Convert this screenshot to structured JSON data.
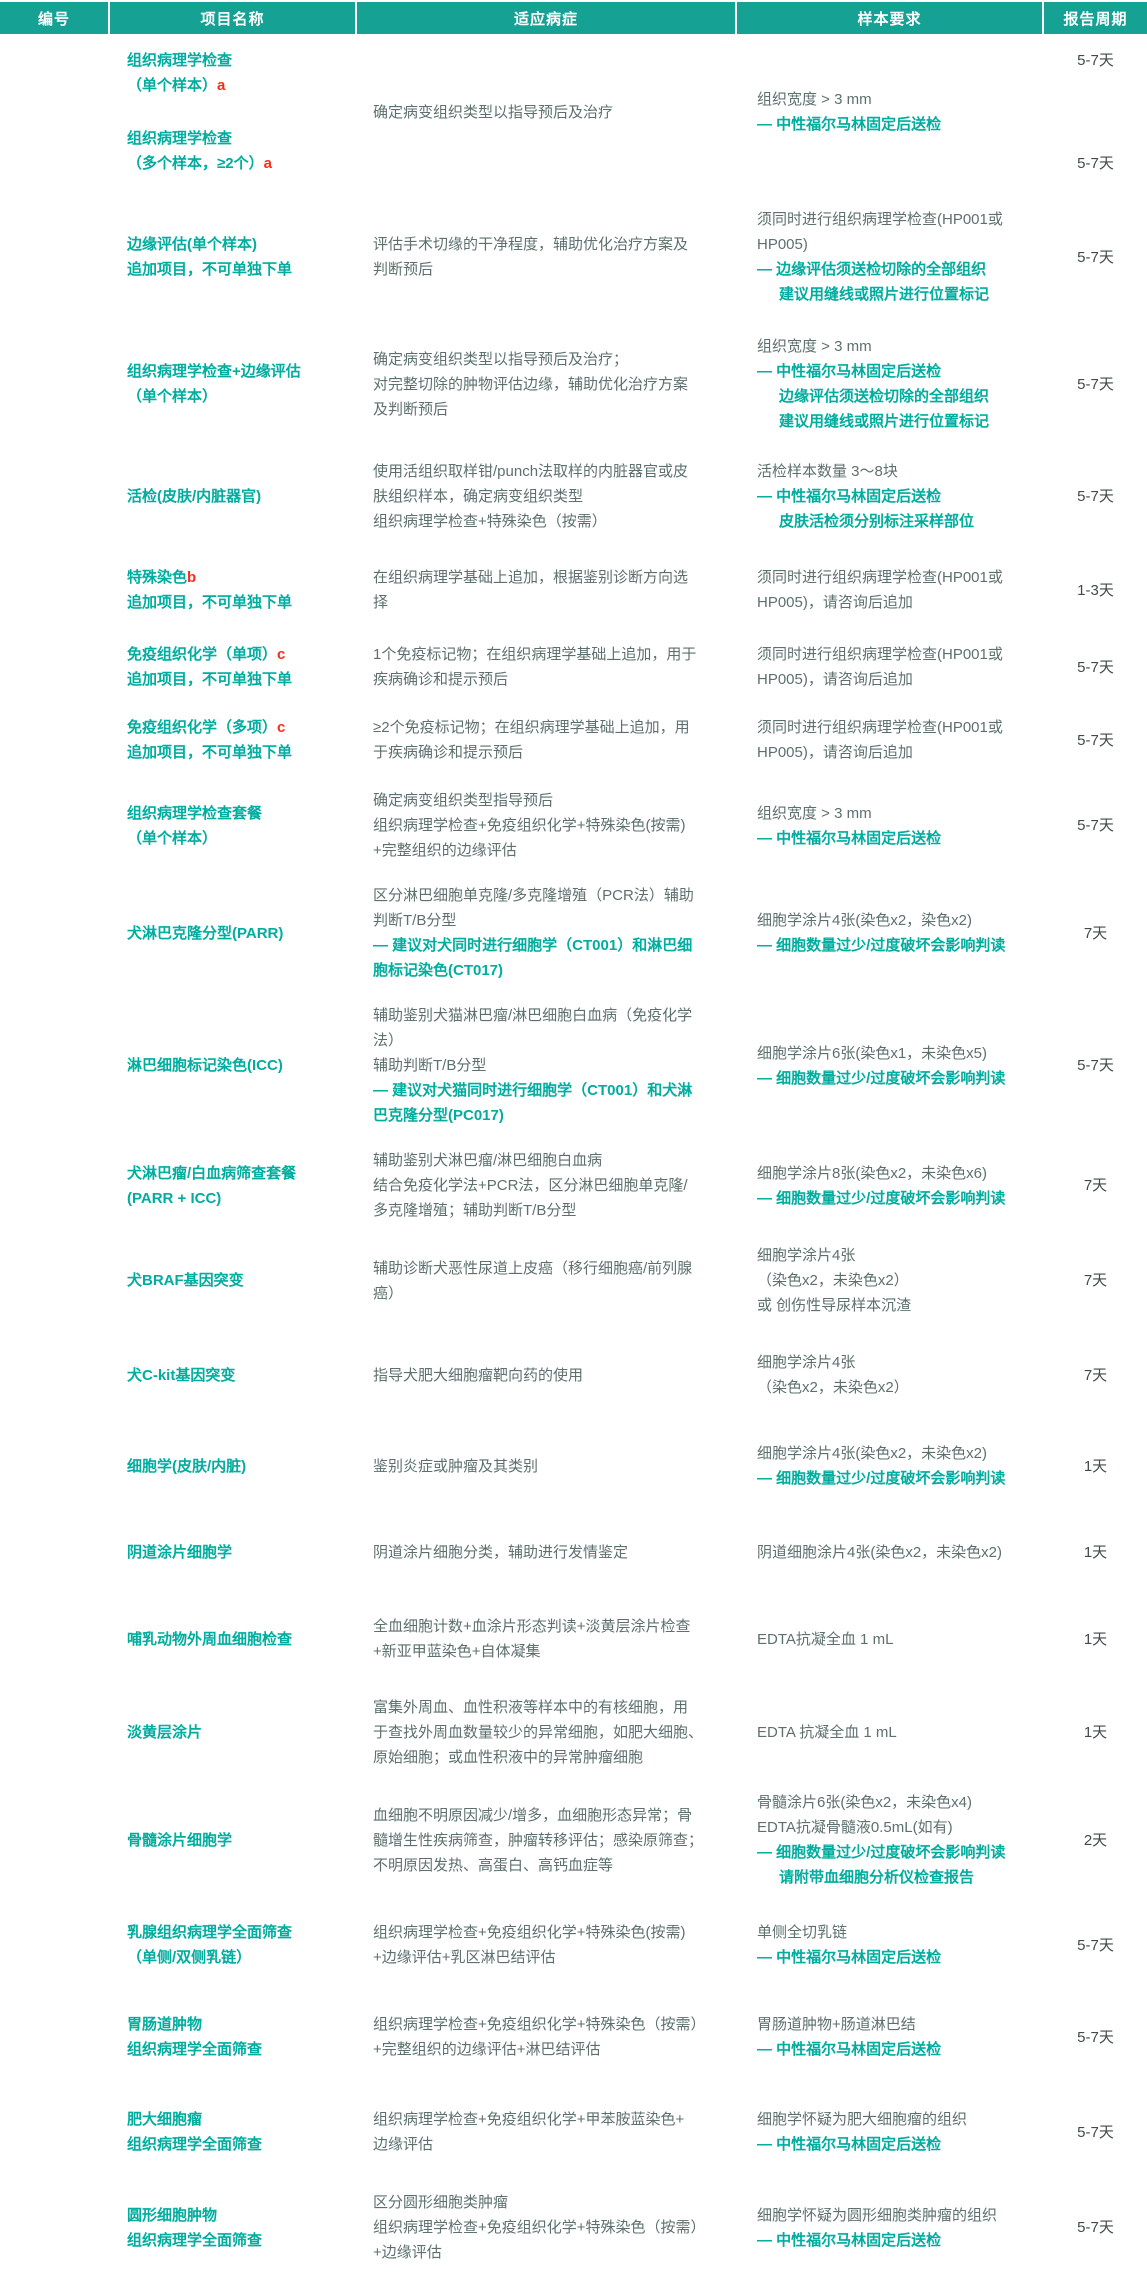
{
  "header": {
    "columns": [
      "编号",
      "项目名称",
      "适应病症",
      "样本要求",
      "报告周期"
    ]
  },
  "colors": {
    "header_bg": "#16a195",
    "accent_teal": "#00ad9f",
    "body_text": "#5d706d",
    "period_text": "#414b49",
    "marker_red": "#f92c1b"
  },
  "rows": [
    {
      "names": [
        {
          "lines": [
            {
              "t": "组织病理学检查"
            },
            {
              "t": "（单个样本）",
              "sup": "a"
            }
          ],
          "period": "5-7天"
        },
        {
          "lines": [
            {
              "t": "组织病理学检查"
            },
            {
              "t": "（多个样本，≥2个）",
              "sup": "a"
            }
          ],
          "period": "5-7天"
        }
      ],
      "indication": [
        {
          "t": "确定病变组织类型以指导预后及治疗"
        }
      ],
      "sample": [
        {
          "t": "组织宽度 > 3 mm"
        },
        {
          "t": "— 中性福尔马林固定后送检",
          "b": 1
        }
      ]
    },
    {
      "names": [
        {
          "lines": [
            {
              "t": "边缘评估(单个样本)"
            },
            {
              "t": "追加项目，不可单独下单"
            }
          ],
          "period": "5-7天"
        }
      ],
      "indication": [
        {
          "t": "评估手术切缘的干净程度，辅助优化治疗方案及"
        },
        {
          "t": "判断预后"
        }
      ],
      "sample": [
        {
          "t": "须同时进行组织病理学检查(HP001或"
        },
        {
          "t": "HP005)"
        },
        {
          "t": "— 边缘评估须送检切除的全部组织",
          "b": 1
        },
        {
          "t": "建议用缝线或照片进行位置标记",
          "b": 1,
          "i": 1
        }
      ]
    },
    {
      "names": [
        {
          "lines": [
            {
              "t": "组织病理学检查+边缘评估"
            },
            {
              "t": "（单个样本）"
            }
          ],
          "period": "5-7天"
        }
      ],
      "indication": [
        {
          "t": "确定病变组织类型以指导预后及治疗；"
        },
        {
          "t": "对完整切除的肿物评估边缘，辅助优化治疗方案"
        },
        {
          "t": "及判断预后"
        }
      ],
      "sample": [
        {
          "t": "组织宽度 > 3 mm"
        },
        {
          "t": "— 中性福尔马林固定后送检",
          "b": 1
        },
        {
          "t": "边缘评估须送检切除的全部组织",
          "b": 1,
          "i": 1
        },
        {
          "t": "建议用缝线或照片进行位置标记",
          "b": 1,
          "i": 1
        }
      ]
    },
    {
      "names": [
        {
          "lines": [
            {
              "t": "活检(皮肤/内脏器官)"
            }
          ],
          "period": "5-7天"
        }
      ],
      "indication": [
        {
          "t": "使用活组织取样钳/punch法取样的内脏器官或皮"
        },
        {
          "t": "肤组织样本，确定病变组织类型"
        },
        {
          "t": "组织病理学检查+特殊染色（按需）"
        }
      ],
      "sample": [
        {
          "t": "活检样本数量 3～8块"
        },
        {
          "t": "— 中性福尔马林固定后送检",
          "b": 1
        },
        {
          "t": "皮肤活检须分别标注采样部位",
          "b": 1,
          "i": 1
        }
      ]
    },
    {
      "names": [
        {
          "lines": [
            {
              "t": "特殊染色",
              "sup": "b"
            },
            {
              "t": "追加项目，不可单独下单"
            }
          ],
          "period": "1-3天"
        }
      ],
      "indication": [
        {
          "t": "在组织病理学基础上追加，根据鉴别诊断方向选"
        },
        {
          "t": "择"
        }
      ],
      "sample": [
        {
          "t": "须同时进行组织病理学检查(HP001或"
        },
        {
          "t": "HP005)，请咨询后追加"
        }
      ]
    },
    {
      "names": [
        {
          "lines": [
            {
              "t": "免疫组织化学（单项）",
              "sup": "c"
            },
            {
              "t": "追加项目，不可单独下单"
            }
          ],
          "period": "5-7天"
        }
      ],
      "indication": [
        {
          "t": "1个免疫标记物；在组织病理学基础上追加，用于"
        },
        {
          "t": "疾病确诊和提示预后"
        }
      ],
      "sample": [
        {
          "t": "须同时进行组织病理学检查(HP001或"
        },
        {
          "t": "HP005)，请咨询后追加"
        }
      ]
    },
    {
      "names": [
        {
          "lines": [
            {
              "t": "免疫组织化学（多项）",
              "sup": "c"
            },
            {
              "t": "追加项目，不可单独下单"
            }
          ],
          "period": "5-7天"
        }
      ],
      "indication": [
        {
          "t": "≥2个免疫标记物；在组织病理学基础上追加，用"
        },
        {
          "t": "于疾病确诊和提示预后"
        }
      ],
      "sample": [
        {
          "t": "须同时进行组织病理学检查(HP001或"
        },
        {
          "t": "HP005)，请咨询后追加"
        }
      ]
    },
    {
      "names": [
        {
          "lines": [
            {
              "t": "组织病理学检查套餐"
            },
            {
              "t": "（单个样本）"
            }
          ],
          "period": "5-7天"
        }
      ],
      "indication": [
        {
          "t": "确定病变组织类型指导预后"
        },
        {
          "t": "组织病理学检查+免疫组织化学+特殊染色(按需)"
        },
        {
          "t": "+完整组织的边缘评估"
        }
      ],
      "sample": [
        {
          "t": "组织宽度 > 3 mm"
        },
        {
          "t": "— 中性福尔马林固定后送检",
          "b": 1
        }
      ]
    },
    {
      "names": [
        {
          "lines": [
            {
              "t": "犬淋巴克隆分型(PARR)"
            }
          ],
          "period": "7天"
        }
      ],
      "indication": [
        {
          "t": "区分淋巴细胞单克隆/多克隆增殖（PCR法）辅助"
        },
        {
          "t": "判断T/B分型"
        },
        {
          "t": "— 建议对犬同时进行细胞学（CT001）和淋巴细",
          "b": 1
        },
        {
          "t": "胞标记染色(CT017)",
          "b": 1
        }
      ],
      "sample": [
        {
          "t": "细胞学涂片4张(染色x2，染色x2)"
        },
        {
          "t": "— 细胞数量过少/过度破坏会影响判读",
          "b": 1
        }
      ]
    },
    {
      "names": [
        {
          "lines": [
            {
              "t": "淋巴细胞标记染色(ICC)"
            }
          ],
          "period": "5-7天"
        }
      ],
      "indication": [
        {
          "t": "辅助鉴别犬猫淋巴瘤/淋巴细胞白血病（免疫化学"
        },
        {
          "t": "法）"
        },
        {
          "t": "辅助判断T/B分型"
        },
        {
          "t": "— 建议对犬猫同时进行细胞学（CT001）和犬淋",
          "b": 1
        },
        {
          "t": "巴克隆分型(PC017)",
          "b": 1
        }
      ],
      "sample": [
        {
          "t": "细胞学涂片6张(染色x1，未染色x5)"
        },
        {
          "t": "— 细胞数量过少/过度破坏会影响判读",
          "b": 1
        }
      ]
    },
    {
      "names": [
        {
          "lines": [
            {
              "t": "犬淋巴瘤/白血病筛查套餐"
            },
            {
              "t": "(PARR + ICC)"
            }
          ],
          "period": "7天"
        }
      ],
      "indication": [
        {
          "t": "辅助鉴别犬淋巴瘤/淋巴细胞白血病"
        },
        {
          "t": "结合免疫化学法+PCR法，区分淋巴细胞单克隆/"
        },
        {
          "t": "多克隆增殖；辅助判断T/B分型"
        }
      ],
      "sample": [
        {
          "t": "细胞学涂片8张(染色x2，未染色x6)"
        },
        {
          "t": "— 细胞数量过少/过度破坏会影响判读",
          "b": 1
        }
      ]
    },
    {
      "names": [
        {
          "lines": [
            {
              "t": "犬BRAF基因突变"
            }
          ],
          "period": "7天"
        }
      ],
      "indication": [
        {
          "t": "辅助诊断犬恶性尿道上皮癌（移行细胞癌/前列腺"
        },
        {
          "t": "癌）"
        }
      ],
      "sample": [
        {
          "t": "细胞学涂片4张"
        },
        {
          "t": "（染色x2，未染色x2）"
        },
        {
          "t": "或 创伤性导尿样本沉渣"
        }
      ]
    },
    {
      "names": [
        {
          "lines": [
            {
              "t": "犬C-kit基因突变"
            }
          ],
          "period": "7天"
        }
      ],
      "indication": [
        {
          "t": "指导犬肥大细胞瘤靶向药的使用"
        }
      ],
      "sample": [
        {
          "t": "细胞学涂片4张"
        },
        {
          "t": "（染色x2，未染色x2）"
        }
      ]
    },
    {
      "names": [
        {
          "lines": [
            {
              "t": "细胞学(皮肤/内脏)"
            }
          ],
          "period": "1天"
        }
      ],
      "indication": [
        {
          "t": "鉴别炎症或肿瘤及其类别"
        }
      ],
      "sample": [
        {
          "t": "细胞学涂片4张(染色x2，未染色x2)"
        },
        {
          "t": "— 细胞数量过少/过度破坏会影响判读",
          "b": 1
        }
      ]
    },
    {
      "names": [
        {
          "lines": [
            {
              "t": "阴道涂片细胞学"
            }
          ],
          "period": "1天"
        }
      ],
      "indication": [
        {
          "t": "阴道涂片细胞分类，辅助进行发情鉴定"
        }
      ],
      "sample": [
        {
          "t": "阴道细胞涂片4张(染色x2，未染色x2)"
        }
      ]
    },
    {
      "names": [
        {
          "lines": [
            {
              "t": "哺乳动物外周血细胞检查"
            }
          ],
          "period": "1天"
        }
      ],
      "indication": [
        {
          "t": "全血细胞计数+血涂片形态判读+淡黄层涂片检查"
        },
        {
          "t": "+新亚甲蓝染色+自体凝集"
        }
      ],
      "sample": [
        {
          "t": "EDTA抗凝全血 1 mL"
        }
      ]
    },
    {
      "names": [
        {
          "lines": [
            {
              "t": "淡黄层涂片"
            }
          ],
          "period": "1天"
        }
      ],
      "indication": [
        {
          "t": "富集外周血、血性积液等样本中的有核细胞，用"
        },
        {
          "t": "于查找外周血数量较少的异常细胞，如肥大细胞、"
        },
        {
          "t": "原始细胞；或血性积液中的异常肿瘤细胞"
        }
      ],
      "sample": [
        {
          "t": "EDTA 抗凝全血 1 mL"
        }
      ]
    },
    {
      "names": [
        {
          "lines": [
            {
              "t": "骨髓涂片细胞学"
            }
          ],
          "period": "2天"
        }
      ],
      "indication": [
        {
          "t": "血细胞不明原因减少/增多，血细胞形态异常；骨"
        },
        {
          "t": "髓增生性疾病筛查，肿瘤转移评估；感染原筛查；"
        },
        {
          "t": "不明原因发热、高蛋白、高钙血症等"
        }
      ],
      "sample": [
        {
          "t": "骨髓涂片6张(染色x2，未染色x4)"
        },
        {
          "t": "EDTA抗凝骨髓液0.5mL(如有)"
        },
        {
          "t": "— 细胞数量过少/过度破坏会影响判读",
          "b": 1
        },
        {
          "t": "请附带血细胞分析仪检查报告",
          "b": 1,
          "i": 1
        }
      ]
    },
    {
      "names": [
        {
          "lines": [
            {
              "t": "乳腺组织病理学全面筛查"
            },
            {
              "t": "（单侧/双侧乳链）"
            }
          ],
          "period": "5-7天"
        }
      ],
      "indication": [
        {
          "t": "组织病理学检查+免疫组织化学+特殊染色(按需)"
        },
        {
          "t": "+边缘评估+乳区淋巴结评估"
        }
      ],
      "sample": [
        {
          "t": "单侧全切乳链"
        },
        {
          "t": "— 中性福尔马林固定后送检",
          "b": 1
        }
      ]
    },
    {
      "names": [
        {
          "lines": [
            {
              "t": "胃肠道肿物"
            },
            {
              "t": "组织病理学全面筛查"
            }
          ],
          "period": "5-7天"
        }
      ],
      "indication": [
        {
          "t": "组织病理学检查+免疫组织化学+特殊染色（按需）"
        },
        {
          "t": "+完整组织的边缘评估+淋巴结评估"
        }
      ],
      "sample": [
        {
          "t": "胃肠道肿物+肠道淋巴结"
        },
        {
          "t": "— 中性福尔马林固定后送检",
          "b": 1
        }
      ]
    },
    {
      "names": [
        {
          "lines": [
            {
              "t": "肥大细胞瘤"
            },
            {
              "t": "组织病理学全面筛查"
            }
          ],
          "period": "5-7天"
        }
      ],
      "indication": [
        {
          "t": "组织病理学检查+免疫组织化学+甲苯胺蓝染色+"
        },
        {
          "t": "边缘评估"
        }
      ],
      "sample": [
        {
          "t": "细胞学怀疑为肥大细胞瘤的组织"
        },
        {
          "t": "— 中性福尔马林固定后送检",
          "b": 1
        }
      ]
    },
    {
      "names": [
        {
          "lines": [
            {
              "t": "圆形细胞肿物"
            },
            {
              "t": "组织病理学全面筛查"
            }
          ],
          "period": "5-7天"
        }
      ],
      "indication": [
        {
          "t": "区分圆形细胞类肿瘤"
        },
        {
          "t": "组织病理学检查+免疫组织化学+特殊染色（按需）"
        },
        {
          "t": "+边缘评估"
        }
      ],
      "sample": [
        {
          "t": "细胞学怀疑为圆形细胞类肿瘤的组织"
        },
        {
          "t": "— 中性福尔马林固定后送检",
          "b": 1
        }
      ]
    }
  ]
}
